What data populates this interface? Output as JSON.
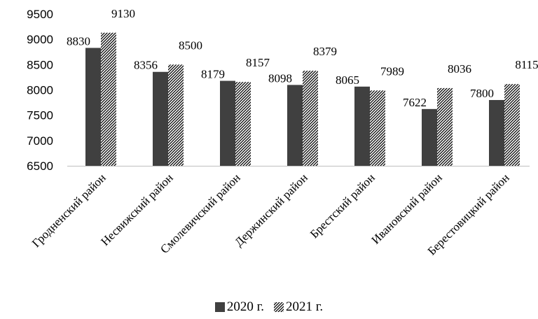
{
  "chart_data": {
    "type": "bar",
    "categories": [
      "Гродненский район",
      "Несвижский район",
      "Смолевичский район",
      "Держинский район",
      "Брестский район",
      "Ивановский район",
      "Берестовицкий район"
    ],
    "series": [
      {
        "name": "2020 г.",
        "values": [
          8830,
          8356,
          8179,
          8098,
          8065,
          7622,
          7800
        ],
        "color": "#404040",
        "pattern": "solid"
      },
      {
        "name": "2021 г.",
        "values": [
          9130,
          8500,
          8157,
          8379,
          7989,
          8036,
          8115
        ],
        "color": "#000000",
        "pattern": "diagonal-hatch"
      }
    ],
    "title": "",
    "xlabel": "",
    "ylabel": "",
    "ylim": [
      6500,
      9500
    ],
    "yticks": [
      6500,
      7000,
      7500,
      8000,
      8500,
      9000,
      9500
    ],
    "grid": false,
    "legend_position": "bottom"
  }
}
